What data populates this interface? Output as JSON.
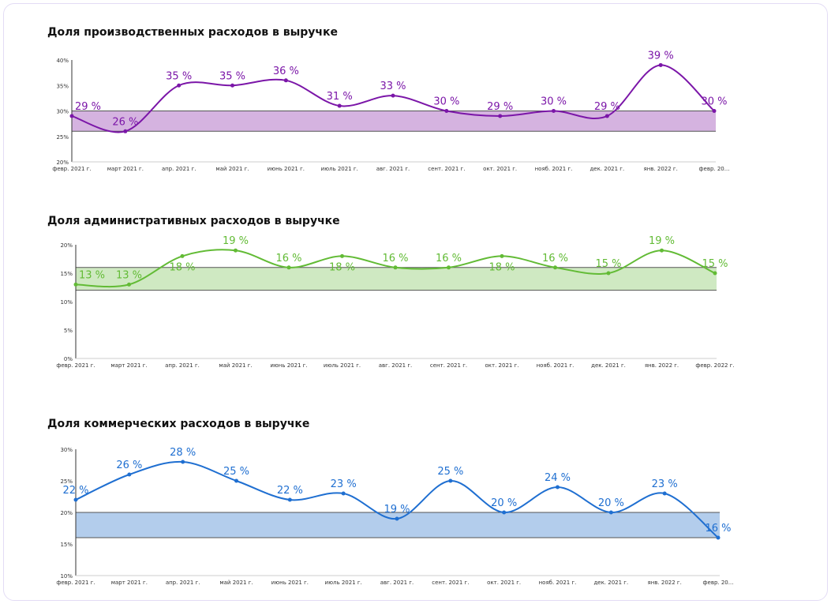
{
  "chart_data": [
    {
      "type": "line",
      "title": "Доля производственных расходов в выручке",
      "color": "#7b16a8",
      "band_color": "#d5b3e0",
      "categories": [
        "февр. 2021 г.",
        "март 2021 г.",
        "апр. 2021 г.",
        "май 2021 г.",
        "июнь 2021 г.",
        "июль 2021 г.",
        "авг. 2021 г.",
        "сент. 2021 г.",
        "окт. 2021 г.",
        "нояб. 2021 г.",
        "дек. 2021 г.",
        "янв. 2022 г.",
        "февр. 20..."
      ],
      "values": [
        29,
        26,
        35,
        35,
        36,
        31,
        33,
        30,
        29,
        30,
        29,
        39,
        30
      ],
      "data_labels": [
        "29 %",
        "26 %",
        "35 %",
        "35 %",
        "36 %",
        "31 %",
        "33 %",
        "30 %",
        "29 %",
        "30 %",
        "29 %",
        "39 %",
        "30 %"
      ],
      "band": [
        26,
        30
      ],
      "ylim": [
        20,
        40
      ],
      "yticks": [
        "20%",
        "25%",
        "30%",
        "35%",
        "40%"
      ]
    },
    {
      "type": "line",
      "title": "Доля административных расходов в выручке",
      "color": "#62bb35",
      "band_color": "#cfe9c2",
      "categories": [
        "февр. 2021 г.",
        "март 2021 г.",
        "апр. 2021 г.",
        "май 2021 г.",
        "июнь 2021 г.",
        "июль 2021 г.",
        "авг. 2021 г.",
        "сент. 2021 г.",
        "окт. 2021 г.",
        "нояб. 2021 г.",
        "дек. 2021 г.",
        "янв. 2022 г.",
        "февр. 2022 г."
      ],
      "values": [
        13,
        13,
        18,
        19,
        16,
        18,
        16,
        16,
        18,
        16,
        15,
        19,
        15
      ],
      "data_labels": [
        "13 %",
        "13 %",
        "18 %",
        "19 %",
        "16 %",
        "18 %",
        "16 %",
        "16 %",
        "18 %",
        "16 %",
        "15 %",
        "19 %",
        "15 %"
      ],
      "band": [
        12,
        16
      ],
      "ylim": [
        0,
        20
      ],
      "yticks": [
        "0%",
        "5%",
        "10%",
        "15%",
        "20%"
      ]
    },
    {
      "type": "line",
      "title": "Доля коммерческих расходов в выручке",
      "color": "#1f6fd1",
      "band_color": "#b3cdec",
      "categories": [
        "февр. 2021 г.",
        "март 2021 г.",
        "апр. 2021 г.",
        "май 2021 г.",
        "июнь 2021 г.",
        "июль 2021 г.",
        "авг. 2021 г.",
        "сент. 2021 г.",
        "окт. 2021 г.",
        "нояб. 2021 г.",
        "дек. 2021 г.",
        "янв. 2022 г.",
        "февр. 20..."
      ],
      "values": [
        22,
        26,
        28,
        25,
        22,
        23,
        19,
        25,
        20,
        24,
        20,
        23,
        16
      ],
      "data_labels": [
        "22 %",
        "26 %",
        "28 %",
        "25 %",
        "22 %",
        "23 %",
        "19 %",
        "25 %",
        "20 %",
        "24 %",
        "20 %",
        "23 %",
        "16 %"
      ],
      "band": [
        16,
        20
      ],
      "ylim": [
        10,
        30
      ],
      "yticks": [
        "10%",
        "15%",
        "20%",
        "25%",
        "30%"
      ]
    }
  ]
}
